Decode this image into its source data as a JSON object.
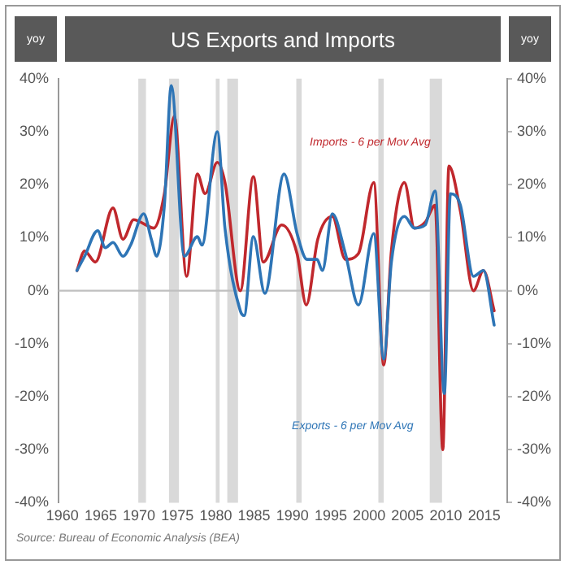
{
  "chart_data": {
    "type": "line",
    "title": "US Exports and Imports",
    "ylabel": "yoy",
    "y2label": "yoy",
    "xlim": [
      1959.5,
      2018
    ],
    "xticks": [
      1960,
      1965,
      1970,
      1975,
      1980,
      1985,
      1990,
      1995,
      2000,
      2005,
      2010,
      2015
    ],
    "ylim": [
      -40,
      40
    ],
    "yticks": [
      {
        "value": -40,
        "label": "-40%"
      },
      {
        "value": -30,
        "label": "-30%"
      },
      {
        "value": -20,
        "label": "-20%"
      },
      {
        "value": -10,
        "label": "-10%"
      },
      {
        "value": 0,
        "label": "0%"
      },
      {
        "value": 10,
        "label": "10%"
      },
      {
        "value": 20,
        "label": "20%"
      },
      {
        "value": 30,
        "label": "30%"
      },
      {
        "value": 40,
        "label": "40%"
      }
    ],
    "y2lim": [
      -40,
      40
    ],
    "y2ticks": [
      {
        "value": -40,
        "label": "-40%"
      },
      {
        "value": -30,
        "label": "-30%"
      },
      {
        "value": -20,
        "label": "-20%"
      },
      {
        "value": -10,
        "label": "-10%"
      },
      {
        "value": 0,
        "label": "0%"
      },
      {
        "value": 10,
        "label": "10%"
      },
      {
        "value": 20,
        "label": "20%"
      },
      {
        "value": 30,
        "label": "30%"
      },
      {
        "value": 40,
        "label": "40%"
      }
    ],
    "series": [
      {
        "name": "Exports - 6 per Mov Avg",
        "color": "#2e75b6",
        "x": [
          1961.9,
          1962.9,
          1964.6,
          1965.6,
          1966.6,
          1967.9,
          1968.9,
          1970.6,
          1971.6,
          1972.3,
          1973.3,
          1974.2,
          1975.9,
          1977.6,
          1978.2,
          1980.2,
          1981.2,
          1983.2,
          1983.7,
          1984.9,
          1986.4,
          1988.9,
          1990.6,
          1991.9,
          1993.2,
          1993.9,
          1995.2,
          1996.9,
          1998.6,
          2000.6,
          2001.9,
          2002.9,
          2004.6,
          2005.9,
          2007.3,
          2008.6,
          2009.8,
          2010.6,
          2011.9,
          2013.6,
          2014.9,
          2016.3
        ],
        "values": [
          3.8,
          6.5,
          11.3,
          8.1,
          9.1,
          6.5,
          8.6,
          14.5,
          9.7,
          6.5,
          16.1,
          38.7,
          6.5,
          10.2,
          8.6,
          30,
          11.8,
          -3.8,
          -4.7,
          10.2,
          -0.5,
          22,
          10.8,
          5.9,
          5.9,
          3.8,
          14.5,
          7,
          -2.7,
          10.8,
          -12.9,
          5.4,
          14,
          11.8,
          12.4,
          18.8,
          -19.4,
          18.3,
          16.1,
          2.7,
          3.8,
          -6.5
        ]
      },
      {
        "name": "Imports - 6 per Mov Avg",
        "color": "#c0282d",
        "x": [
          1961.9,
          1962.9,
          1964.3,
          1966.6,
          1967.9,
          1969.3,
          1970.9,
          1971.9,
          1973.3,
          1974.6,
          1976.2,
          1977.6,
          1978.6,
          1980.2,
          1981.2,
          1983.2,
          1984.9,
          1986.2,
          1988.6,
          1990.6,
          1991.8,
          1993.3,
          1995.2,
          1996.9,
          1998.6,
          2000.6,
          2001.9,
          2002.9,
          2004.6,
          2005.9,
          2007.3,
          2008.6,
          2009.6,
          2010.4,
          2011.9,
          2013.6,
          2014.9,
          2016.3
        ],
        "values": [
          3.8,
          7.5,
          5.4,
          15.6,
          9.7,
          13.4,
          12.4,
          11.8,
          18.3,
          32.9,
          2.7,
          22,
          18.3,
          24.2,
          20.4,
          0,
          21.5,
          5.4,
          12.4,
          7,
          -2.7,
          9.7,
          14,
          5.9,
          7,
          20.4,
          -14,
          7.5,
          20.4,
          11.8,
          12.9,
          16.1,
          -30,
          23.5,
          15,
          0,
          3.8,
          -3.8
        ]
      }
    ],
    "bands": [
      {
        "axis": "x",
        "from": 1969.9,
        "to": 1970.9,
        "color": "#d9d9d9"
      },
      {
        "axis": "x",
        "from": 1973.9,
        "to": 1975.2,
        "color": "#d9d9d9"
      },
      {
        "axis": "x",
        "from": 1980,
        "to": 1980.5,
        "color": "#d9d9d9"
      },
      {
        "axis": "x",
        "from": 1981.5,
        "to": 1982.9,
        "color": "#d9d9d9"
      },
      {
        "axis": "x",
        "from": 1990.5,
        "to": 1991.2,
        "color": "#d9d9d9"
      },
      {
        "axis": "x",
        "from": 2001.2,
        "to": 2001.9,
        "color": "#d9d9d9"
      },
      {
        "axis": "x",
        "from": 2007.9,
        "to": 2009.5,
        "color": "#d9d9d9"
      }
    ],
    "ref_lines": [
      {
        "axis": "y",
        "value": 0,
        "color": "#bfbfbf"
      }
    ],
    "annotations": [
      "Source: Bureau of Economic Analysis (BEA)"
    ],
    "grid": false,
    "legend": false,
    "marker": "none",
    "line_style": "solid"
  }
}
